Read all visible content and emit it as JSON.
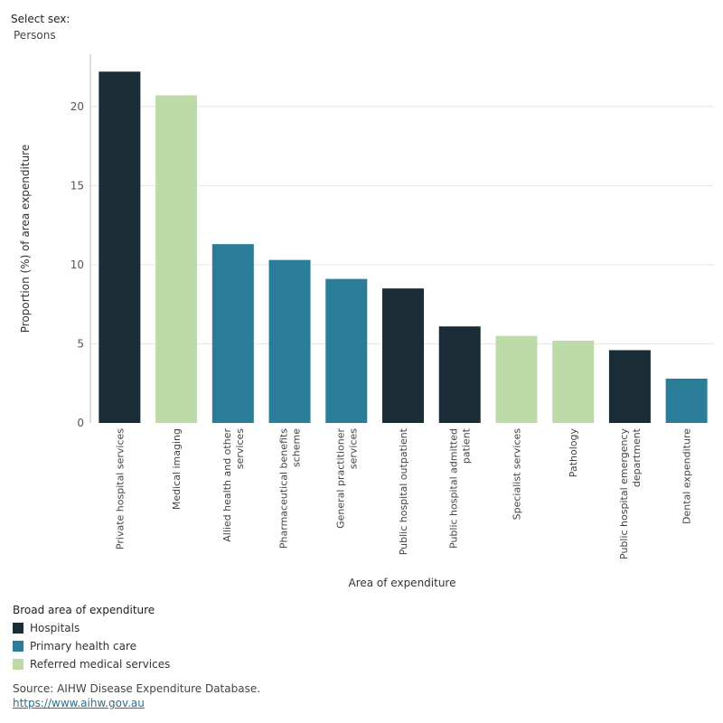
{
  "filter": {
    "label": "Select sex:",
    "value": "Persons"
  },
  "chart_data": {
    "type": "bar",
    "xlabel": "Area of expenditure",
    "ylabel": "Proportion (%) of area expenditure",
    "ylim": [
      0,
      23.3
    ],
    "yticks": [
      0,
      5,
      10,
      15,
      20
    ],
    "grid": true,
    "categories": [
      "Private hospital services",
      "Medical imaging",
      "Allied health and other services",
      "Pharmaceutical benefits scheme",
      "General practitioner services",
      "Public hospital outpatient",
      "Public hospital admitted patient",
      "Specialist services",
      "Pathology",
      "Public hospital emergency department",
      "Dental expenditure"
    ],
    "category_lines": [
      [
        "Private hospital services"
      ],
      [
        "Medical imaging"
      ],
      [
        "Allied health and other",
        "services"
      ],
      [
        "Pharmaceutical benefits",
        "scheme"
      ],
      [
        "General practitioner",
        "services"
      ],
      [
        "Public hospital outpatient"
      ],
      [
        "Public hospital admitted",
        "patient"
      ],
      [
        "Specialist services"
      ],
      [
        "Pathology"
      ],
      [
        "Public hospital emergency",
        "department"
      ],
      [
        "Dental expenditure"
      ]
    ],
    "values": [
      22.2,
      20.7,
      11.3,
      10.3,
      9.1,
      8.5,
      6.1,
      5.5,
      5.2,
      4.6,
      2.8
    ],
    "groups": [
      "Hospitals",
      "Referred medical services",
      "Primary health care",
      "Primary health care",
      "Primary health care",
      "Hospitals",
      "Hospitals",
      "Referred medical services",
      "Referred medical services",
      "Hospitals",
      "Primary health care"
    ],
    "legend_title": "Broad area of expenditure",
    "legend": [
      {
        "name": "Hospitals",
        "color": "#1a2d37"
      },
      {
        "name": "Primary health care",
        "color": "#2a7d98"
      },
      {
        "name": "Referred medical services",
        "color": "#bddba8"
      }
    ],
    "legend_position": "bottom-left"
  },
  "source": {
    "text": "Source: AIHW Disease Expenditure Database.",
    "link": "https://www.aihw.gov.au"
  }
}
